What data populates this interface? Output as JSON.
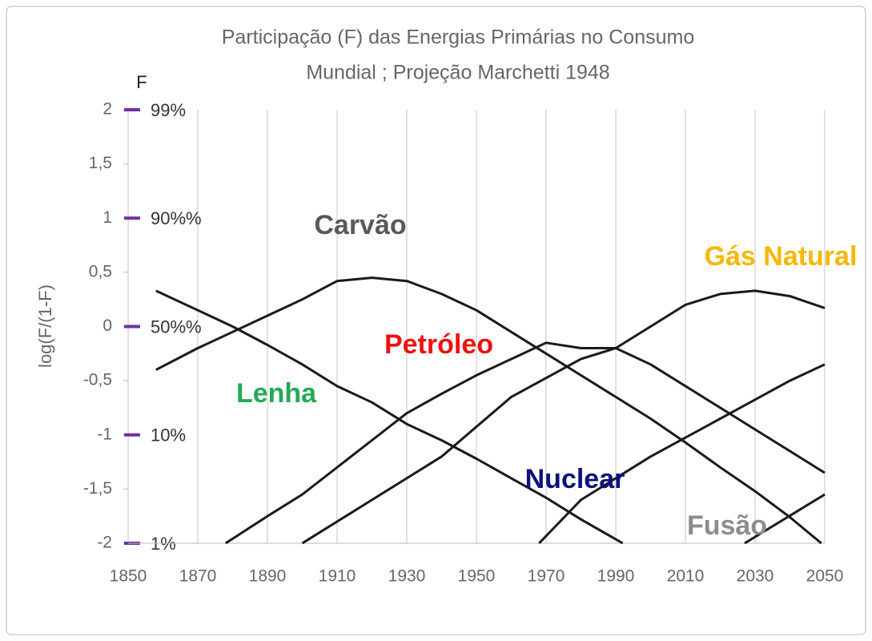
{
  "chart_data": {
    "type": "line",
    "title": [
      "Participação (F) das Energias Primárias no Consumo",
      "Mundial ; Projeção Marchetti 1948"
    ],
    "ylabel": "log(F/(1-F)",
    "f_label": "F",
    "f_ticks": [
      {
        "value": 2,
        "label": "99%"
      },
      {
        "value": 1,
        "label": "90%%"
      },
      {
        "value": 0,
        "label": "50%%"
      },
      {
        "value": -1,
        "label": "10%"
      },
      {
        "value": -2,
        "label": "1%"
      }
    ],
    "f_tick_color": "#7030a0",
    "xlim": [
      1850,
      2050
    ],
    "xticks": [
      1850,
      1870,
      1890,
      1910,
      1930,
      1950,
      1970,
      1990,
      2010,
      2030,
      2050
    ],
    "ylim": [
      -2,
      2
    ],
    "yticks": [
      2,
      {
        "value": 1.5,
        "label": "1,5"
      },
      1,
      {
        "value": 0.5,
        "label": "0,5"
      },
      0,
      {
        "value": -0.5,
        "label": "-0,5"
      },
      -1,
      {
        "value": -1.5,
        "label": "-1,5"
      },
      -2
    ],
    "grid": "x",
    "series": [
      {
        "name": "Lenha",
        "color": "#1a1a1a",
        "label_color": "#22aa55",
        "x": [
          1858,
          1870,
          1880,
          1890,
          1900,
          1910,
          1920,
          1930,
          1940,
          1950,
          1960,
          1970,
          1980,
          1992
        ],
        "values": [
          0.33,
          0.15,
          0,
          -0.17,
          -0.35,
          -0.55,
          -0.7,
          -0.9,
          -1.05,
          -1.22,
          -1.4,
          -1.58,
          -1.78,
          -2
        ]
      },
      {
        "name": "Carvão",
        "color": "#1a1a1a",
        "label_color": "#595959",
        "x": [
          1858,
          1870,
          1880,
          1890,
          1900,
          1910,
          1920,
          1930,
          1940,
          1950,
          1960,
          1970,
          1980,
          1990,
          2000,
          2010,
          2020,
          2030,
          2040,
          2049
        ],
        "values": [
          -0.4,
          -0.2,
          -0.05,
          0.1,
          0.25,
          0.42,
          0.45,
          0.42,
          0.3,
          0.15,
          -0.05,
          -0.25,
          -0.45,
          -0.65,
          -0.85,
          -1.07,
          -1.3,
          -1.52,
          -1.76,
          -2
        ]
      },
      {
        "name": "Petróleo",
        "color": "#1a1a1a",
        "label_color": "#ee1111",
        "x": [
          1878,
          1890,
          1900,
          1910,
          1920,
          1930,
          1940,
          1950,
          1960,
          1970,
          1980,
          1990,
          2000,
          2010,
          2020,
          2030,
          2040,
          2050
        ],
        "values": [
          -2,
          -1.75,
          -1.55,
          -1.3,
          -1.05,
          -0.8,
          -0.62,
          -0.45,
          -0.3,
          -0.15,
          -0.2,
          -0.2,
          -0.35,
          -0.55,
          -0.75,
          -0.95,
          -1.15,
          -1.35
        ]
      },
      {
        "name": "Gás Natural",
        "color": "#1a1a1a",
        "label_color": "#f5b800",
        "x": [
          1900,
          1920,
          1940,
          1960,
          1980,
          1990,
          2000,
          2010,
          2020,
          2030,
          2040,
          2050
        ],
        "values": [
          -2,
          -1.6,
          -1.2,
          -0.65,
          -0.3,
          -0.2,
          0,
          0.2,
          0.3,
          0.33,
          0.28,
          0.17
        ]
      },
      {
        "name": "Nuclear",
        "color": "#1a1a1a",
        "label_color": "#10107a",
        "x": [
          1968,
          1980,
          2000,
          2020,
          2040,
          2050
        ],
        "values": [
          -2,
          -1.6,
          -1.2,
          -0.85,
          -0.5,
          -0.35
        ]
      },
      {
        "name": "Fusão",
        "color": "#1a1a1a",
        "label_color": "#8c8c8c",
        "x": [
          2027,
          2050
        ],
        "values": [
          -2,
          -1.55
        ]
      }
    ]
  }
}
